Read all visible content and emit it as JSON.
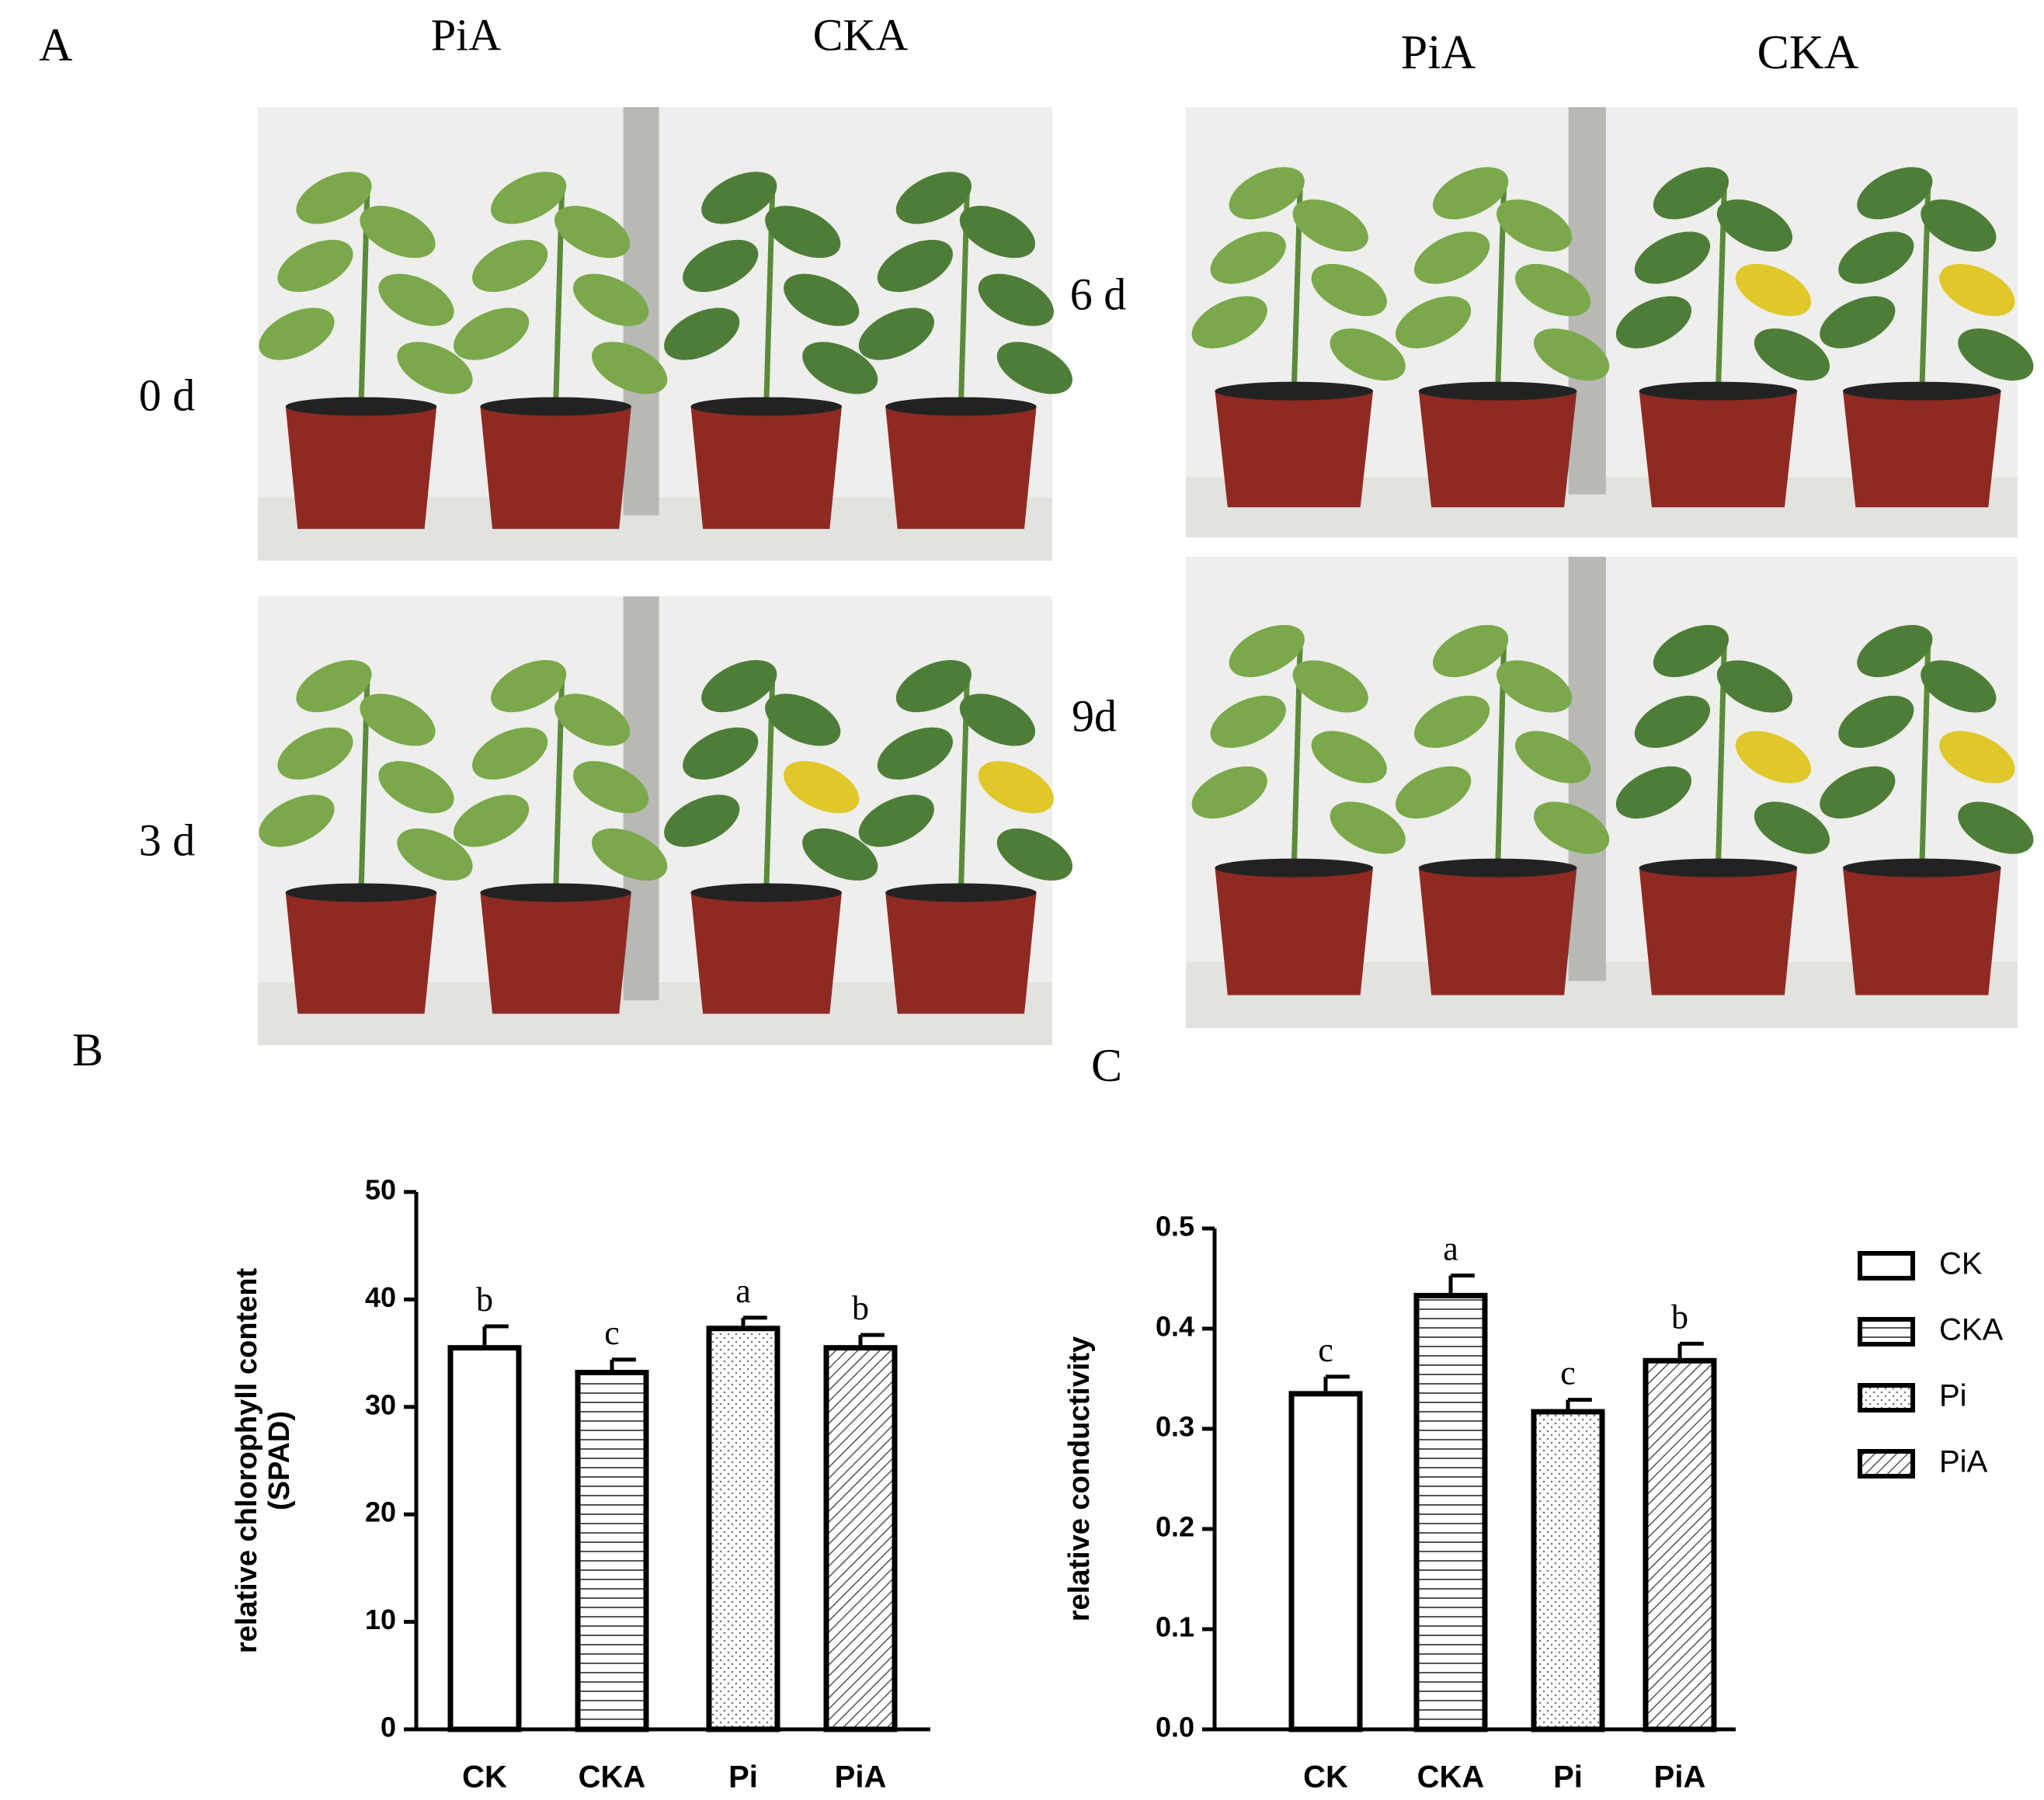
{
  "panels": {
    "A": {
      "letter": "A",
      "top_left": [
        "PiA",
        "CKA"
      ],
      "top_right": [
        "PiA",
        "CKA"
      ],
      "days": [
        "0 d",
        "3 d",
        "6 d",
        "9d"
      ]
    },
    "B": {
      "letter": "B"
    },
    "C": {
      "letter": "C"
    }
  },
  "chart_data": [
    {
      "type": "bar",
      "y_label": [
        "relative chlorophyll content",
        "(SPAD)"
      ],
      "categories": [
        "CK",
        "CKA",
        "Pi",
        "PiA"
      ],
      "values": [
        35.5,
        33.2,
        37.3,
        35.5
      ],
      "errors": [
        2.0,
        1.2,
        1.0,
        1.2
      ],
      "annotations": [
        "b",
        "c",
        "a",
        "b"
      ],
      "fill_patterns": [
        "none",
        "horizontal",
        "dots",
        "diagonal"
      ],
      "color": "#000000",
      "ylim": [
        0,
        50
      ],
      "yticks": [
        0,
        10,
        20,
        30,
        40,
        50
      ]
    },
    {
      "type": "bar",
      "y_label": [
        "relative conductivity"
      ],
      "categories": [
        "CK",
        "CKA",
        "Pi",
        "PiA"
      ],
      "values": [
        0.335,
        0.433,
        0.317,
        0.368
      ],
      "errors": [
        0.017,
        0.02,
        0.012,
        0.017
      ],
      "annotations": [
        "c",
        "a",
        "c",
        "b"
      ],
      "fill_patterns": [
        "none",
        "horizontal",
        "dots",
        "diagonal"
      ],
      "color": "#000000",
      "ylim": [
        0,
        0.5
      ],
      "yticks": [
        {
          "value": 0,
          "label": "0.0"
        },
        0.1,
        0.2,
        0.3,
        0.4,
        0.5
      ],
      "legend": "right"
    }
  ]
}
